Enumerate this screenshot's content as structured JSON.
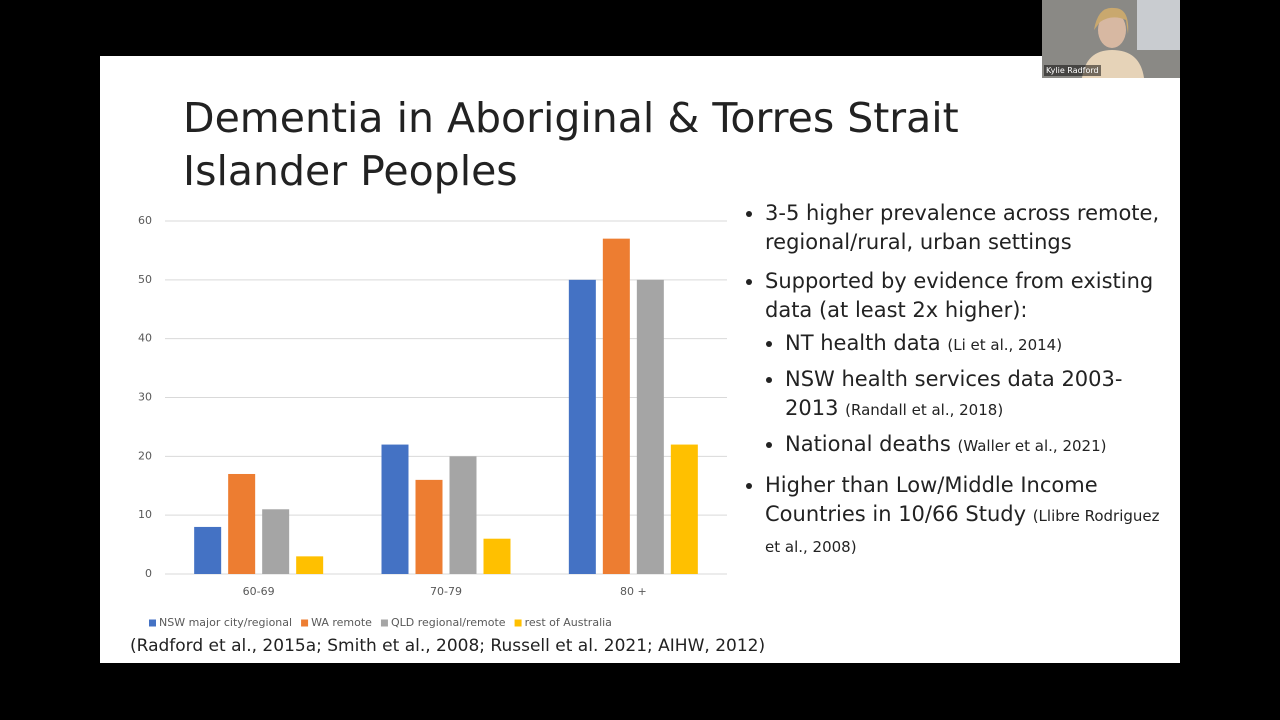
{
  "meeting": {
    "participant_name": "Kylie Radford"
  },
  "slide": {
    "title": "Dementia in Aboriginal & Torres Strait Islander Peoples",
    "bullets": [
      {
        "text": "3-5 higher prevalence across remote, regional/rural, urban settings"
      },
      {
        "text": "Supported by evidence from existing data (at least 2x higher):",
        "sub": [
          {
            "text": "NT health data",
            "cite": "(Li et al., 2014)"
          },
          {
            "text": "NSW health services data 2003-2013",
            "cite": "(Randall et al., 2018)"
          },
          {
            "text": "National deaths",
            "cite": "(Waller et al., 2021)"
          }
        ]
      },
      {
        "text": "Higher than Low/Middle Income Countries in 10/66 Study",
        "cite": "(Llibre Rodriguez et al., 2008)"
      }
    ],
    "source": "(Radford et al., 2015a; Smith et al., 2008; Russell et al. 2021; AIHW, 2012)"
  },
  "chart_data": {
    "type": "bar",
    "categories": [
      "60-69",
      "70-79",
      "80 +"
    ],
    "series": [
      {
        "name": "NSW major city/regional",
        "color": "#4472c4",
        "values": [
          8,
          22,
          50
        ]
      },
      {
        "name": "WA remote",
        "color": "#ed7d31",
        "values": [
          17,
          16,
          57
        ]
      },
      {
        "name": "QLD regional/remote",
        "color": "#a5a5a5",
        "values": [
          11,
          20,
          50
        ]
      },
      {
        "name": "rest of Australia",
        "color": "#ffc000",
        "values": [
          3,
          6,
          22
        ]
      }
    ],
    "ylim": [
      0,
      60
    ],
    "yticks": [
      0,
      10,
      20,
      30,
      40,
      50,
      60
    ],
    "grid": true,
    "legend": "bottom"
  }
}
